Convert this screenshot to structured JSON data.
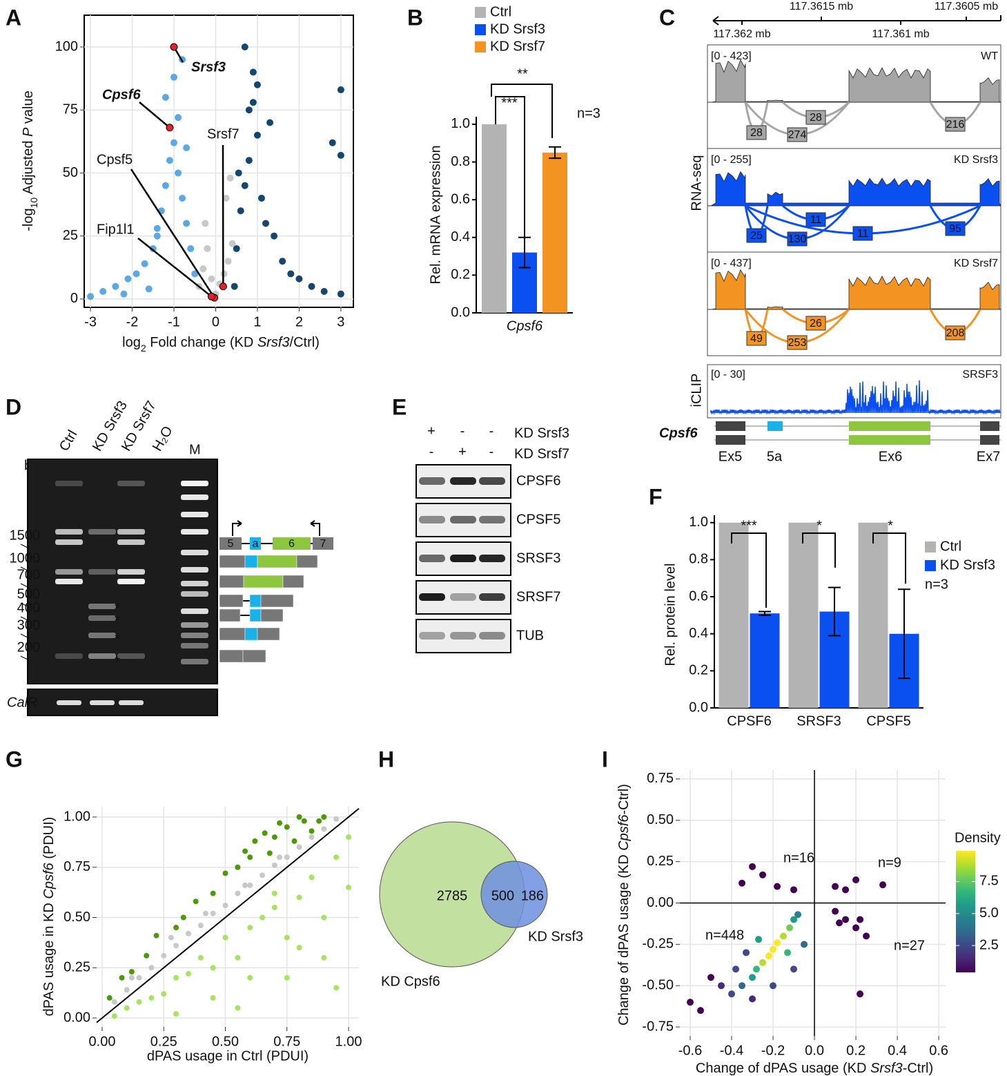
{
  "panel_letters": [
    "A",
    "B",
    "C",
    "D",
    "E",
    "F",
    "G",
    "H",
    "I"
  ],
  "chart_data": [
    {
      "type": "scatter",
      "xlabel": [
        "log",
        "2",
        " Fold change (KD ",
        "Srsf3",
        "/Ctrl)"
      ],
      "ylabel": [
        "-log",
        "10",
        " Adjusted ",
        "P",
        " value"
      ],
      "xlim": [
        -3.15,
        3.3
      ],
      "ylim": [
        -3.3,
        112.6
      ],
      "xticks": [
        -3,
        -2,
        -1,
        0,
        1,
        2,
        3
      ],
      "yticks": [
        0,
        25,
        50,
        75,
        100
      ],
      "grid": true,
      "series": [
        {
          "color": "#5aa9e6",
          "x": [
            -3.0,
            -2.7,
            -2.4,
            -2.1,
            -1.9,
            -1.7,
            -1.5,
            -1.4,
            -1.3,
            -1.2,
            -1.1,
            -1.0,
            -0.9,
            -0.8,
            -0.7,
            -0.6,
            -0.5,
            -1.6,
            -1.2,
            -0.9,
            -0.7,
            -1.0,
            -0.8,
            -1.4,
            -2.2
          ],
          "values": [
            1,
            3,
            5,
            8,
            10,
            14,
            20,
            28,
            35,
            45,
            55,
            62,
            50,
            40,
            30,
            20,
            10,
            4,
            80,
            72,
            60,
            88,
            95,
            25,
            2
          ]
        },
        {
          "color": "#15466f",
          "x": [
            0.45,
            0.5,
            0.6,
            0.7,
            0.8,
            0.9,
            1.0,
            1.1,
            1.2,
            1.4,
            1.6,
            1.8,
            2.0,
            2.3,
            2.6,
            3.0,
            0.8,
            0.9,
            1.0,
            1.3,
            3.0,
            3.0,
            0.55,
            0.7,
            2.8
          ],
          "values": [
            5,
            20,
            35,
            45,
            55,
            78,
            65,
            40,
            30,
            25,
            15,
            10,
            8,
            5,
            3,
            2,
            75,
            90,
            85,
            70,
            83,
            57,
            50,
            100,
            62
          ]
        },
        {
          "color": "#c8c8c8",
          "x": [
            -0.4,
            -0.3,
            -0.2,
            -0.1,
            0,
            0.1,
            0.2,
            0.3,
            0.4,
            -0.25,
            0.25,
            0.35
          ],
          "values": [
            5,
            12,
            20,
            8,
            2,
            6,
            10,
            15,
            22,
            30,
            40,
            48
          ]
        }
      ],
      "highlight_color": "#e8202a",
      "annotations": [
        {
          "text": "Srsf3",
          "x": -1.0,
          "y": 100
        },
        {
          "text": "Cpsf6",
          "x": -1.1,
          "y": 68
        },
        {
          "text": "Srsf7",
          "x": 0.18,
          "y": 5
        },
        {
          "text": "Cpsf5",
          "x": -0.03,
          "y": 0.5
        },
        {
          "text": "Fip1l1",
          "x": -0.1,
          "y": 1
        }
      ]
    },
    {
      "type": "bar",
      "categories": [
        "Cpsf6"
      ],
      "ylabel": "Rel. mRNA expression",
      "ylim": [
        0,
        1.04
      ],
      "yticks": [
        {
          "value": 0,
          "label": "0.0"
        },
        {
          "value": 0.2,
          "label": "0.2"
        },
        {
          "value": 0.4,
          "label": "0.4"
        },
        {
          "value": 0.6,
          "label": "0.6"
        },
        {
          "value": 0.8,
          "label": "0.8"
        },
        {
          "value": 1,
          "label": "1.0"
        }
      ],
      "series": [
        {
          "name": "Ctrl",
          "color": "#b3b3b3",
          "values": [
            1.0
          ]
        },
        {
          "name": "KD Srsf3",
          "color": "#0a4ff0",
          "values": [
            0.32
          ],
          "errors": [
            0.08
          ]
        },
        {
          "name": "KD Srsf7",
          "color": "#f39322",
          "values": [
            0.85
          ],
          "errors": [
            0.03
          ]
        }
      ],
      "significance": [
        "***",
        "**"
      ],
      "note": "n=3"
    },
    {
      "type": "bar",
      "categories": [
        "CPSF6",
        "SRSF3",
        "CPSF5"
      ],
      "ylabel": "Rel. protein level",
      "ylim": [
        0,
        1.04
      ],
      "yticks": [
        {
          "value": 0,
          "label": "0.0"
        },
        {
          "value": 0.2,
          "label": "0.2"
        },
        {
          "value": 0.4,
          "label": "0.4"
        },
        {
          "value": 0.6,
          "label": "0.6"
        },
        {
          "value": 0.8,
          "label": "0.8"
        },
        {
          "value": 1,
          "label": "1.0"
        }
      ],
      "series": [
        {
          "name": "Ctrl",
          "color": "#b3b3b3",
          "values": [
            1.0,
            1.0,
            1.0
          ]
        },
        {
          "name": "KD Srsf3",
          "color": "#0a4ff0",
          "values": [
            0.51,
            0.52,
            0.4
          ],
          "errors": [
            0.01,
            0.13,
            0.24
          ]
        }
      ],
      "significance": [
        "***",
        "*",
        "*"
      ],
      "note": "n=3"
    },
    {
      "type": "scatter",
      "xlabel": "dPAS usage in Ctrl (PDUI)",
      "ylabel": [
        "dPAS usage in KD ",
        "Cpsf6",
        " (PDUI)"
      ],
      "xlim": [
        -0.0224,
        1.042
      ],
      "ylim": [
        -0.0447,
        1.0515
      ],
      "xticks": [
        {
          "value": 0,
          "label": "0.00"
        },
        {
          "value": 0.25,
          "label": "0.25"
        },
        {
          "value": 0.5,
          "label": "0.50"
        },
        {
          "value": 0.75,
          "label": "0.75"
        },
        {
          "value": 1,
          "label": "1.00"
        }
      ],
      "yticks": [
        {
          "value": 0,
          "label": "0.00"
        },
        {
          "value": 0.25,
          "label": "0.25"
        },
        {
          "value": 0.5,
          "label": "0.50"
        },
        {
          "value": 0.75,
          "label": "0.75"
        },
        {
          "value": 1,
          "label": "1.00"
        }
      ],
      "grid": true,
      "diagonal": true,
      "series": [
        {
          "color": "#c8c8c8",
          "x": [
            0.05,
            0.1,
            0.15,
            0.2,
            0.25,
            0.3,
            0.35,
            0.4,
            0.45,
            0.5,
            0.55,
            0.6,
            0.65,
            0.7,
            0.75,
            0.8,
            0.85,
            0.9,
            0.95,
            0.12,
            0.28,
            0.42,
            0.58,
            0.72
          ],
          "values": [
            0.08,
            0.14,
            0.2,
            0.25,
            0.31,
            0.36,
            0.42,
            0.46,
            0.52,
            0.56,
            0.62,
            0.66,
            0.71,
            0.76,
            0.8,
            0.85,
            0.9,
            0.94,
            0.99,
            0.2,
            0.4,
            0.52,
            0.66,
            0.8
          ]
        },
        {
          "color": "#4c9a0a",
          "x": [
            0.03,
            0.08,
            0.12,
            0.18,
            0.22,
            0.3,
            0.33,
            0.38,
            0.45,
            0.5,
            0.55,
            0.6,
            0.62,
            0.68,
            0.7,
            0.75,
            0.78,
            0.82,
            0.85,
            0.9,
            0.72,
            0.66,
            0.58,
            0.8,
            0.88
          ],
          "values": [
            0.1,
            0.2,
            0.23,
            0.31,
            0.41,
            0.45,
            0.5,
            0.58,
            0.62,
            0.72,
            0.75,
            0.8,
            0.88,
            0.82,
            0.9,
            0.95,
            0.88,
            0.98,
            0.93,
            1.0,
            0.97,
            0.92,
            0.83,
            1.0,
            0.98
          ]
        },
        {
          "color": "#a6e363",
          "x": [
            0.05,
            0.1,
            0.15,
            0.2,
            0.25,
            0.3,
            0.35,
            0.4,
            0.45,
            0.5,
            0.55,
            0.6,
            0.65,
            0.7,
            0.75,
            0.8,
            0.85,
            0.9,
            0.95,
            1.0,
            0.3,
            0.45,
            0.6,
            0.75,
            0.9,
            1.0,
            0.55,
            0.8,
            0.95,
            0.7
          ],
          "values": [
            0.01,
            0.05,
            0.08,
            0.1,
            0.12,
            0.2,
            0.22,
            0.3,
            0.25,
            0.4,
            0.3,
            0.45,
            0.5,
            0.55,
            0.4,
            0.6,
            0.7,
            0.5,
            0.8,
            0.9,
            0.02,
            0.1,
            0.2,
            0.2,
            0.3,
            0.65,
            0.05,
            0.35,
            0.15,
            0.62
          ]
        }
      ]
    },
    {
      "type": "venn",
      "sets": [
        "KD Cpsf6",
        "KD Srsf3"
      ],
      "colors": [
        "#c2e0a0",
        "#6f8fe0"
      ],
      "values": [
        2785,
        500,
        186
      ]
    },
    {
      "type": "scatter",
      "xlabel": [
        "Change of dPAS usage (KD ",
        "Srsf3",
        "-Ctrl)"
      ],
      "ylabel": [
        "Change of dPAS usage (KD ",
        "Cpsf6",
        "-Ctrl)"
      ],
      "xlim": [
        -0.65,
        0.633
      ],
      "ylim": [
        -0.804,
        0.804
      ],
      "xticks": [
        {
          "value": -0.6,
          "label": "-0.6"
        },
        {
          "value": -0.4,
          "label": "-0.4"
        },
        {
          "value": -0.2,
          "label": "-0.2"
        },
        {
          "value": 0,
          "label": "0.0"
        },
        {
          "value": 0.2,
          "label": "0.2"
        },
        {
          "value": 0.4,
          "label": "0.4"
        },
        {
          "value": 0.6,
          "label": "0.6"
        }
      ],
      "yticks": [
        {
          "value": -0.75,
          "label": "-0.75"
        },
        {
          "value": -0.5,
          "label": "-0.50"
        },
        {
          "value": -0.25,
          "label": "-0.25"
        },
        {
          "value": 0,
          "label": "0.00"
        },
        {
          "value": 0.25,
          "label": "0.25"
        },
        {
          "value": 0.5,
          "label": "0.50"
        },
        {
          "value": 0.75,
          "label": "0.75"
        }
      ],
      "grid": true,
      "zero_lines": true,
      "colormap": "viridis",
      "series": [
        {
          "x": [
            -0.2,
            -0.22,
            -0.18,
            -0.25,
            -0.15,
            -0.28,
            -0.12,
            -0.3,
            -0.1,
            -0.35,
            -0.08,
            -0.4,
            -0.45,
            -0.55,
            -0.6,
            -0.5,
            -0.33,
            -0.05,
            -0.27,
            -0.13,
            -0.38,
            -0.3,
            -0.2,
            -0.1,
            -0.3,
            -0.25,
            -0.18,
            -0.1,
            -0.35,
            0.1,
            0.15,
            0.2,
            0.33,
            0.1,
            0.15,
            0.2,
            0.25,
            0.12,
            0.22,
            0.22
          ],
          "values": [
            -0.28,
            -0.32,
            -0.24,
            -0.36,
            -0.2,
            -0.4,
            -0.15,
            -0.45,
            -0.1,
            -0.5,
            -0.07,
            -0.55,
            -0.5,
            -0.65,
            -0.6,
            -0.45,
            -0.3,
            -0.25,
            -0.22,
            -0.3,
            -0.4,
            -0.58,
            -0.5,
            -0.4,
            0.22,
            0.17,
            0.1,
            0.08,
            0.12,
            0.1,
            0.08,
            0.14,
            0.11,
            -0.05,
            -0.1,
            -0.15,
            -0.2,
            -0.12,
            -0.1,
            -0.55
          ],
          "density": [
            9.8,
            9.5,
            9.6,
            8.5,
            8.8,
            7,
            7.5,
            5.5,
            6,
            3.5,
            4.5,
            2,
            1.2,
            0.5,
            0.4,
            0.8,
            3,
            3.5,
            6,
            6.5,
            2.5,
            1.5,
            3,
            2.2,
            0.4,
            0.4,
            0.4,
            0.4,
            0.4,
            0.4,
            0.4,
            0.4,
            0.4,
            0.4,
            0.4,
            0.4,
            0.4,
            0.4,
            0.4,
            0.4
          ]
        }
      ],
      "annotations": [
        "n=16",
        "n=9",
        "n=448",
        "n=27"
      ],
      "colorbar": {
        "title": "Density",
        "lim": [
          0.4,
          9.9
        ],
        "ticks": [
          {
            "value": 2.5,
            "label": "2.5"
          },
          {
            "value": 5,
            "label": "5.0"
          },
          {
            "value": 7.5,
            "label": "7.5"
          }
        ]
      }
    }
  ],
  "genome": {
    "coords_top": [
      "117.3615 mb",
      "117.3605 mb"
    ],
    "coords_bottom": [
      "117.362 mb",
      "117.361 mb"
    ],
    "assay_labels": [
      "RNA-seq",
      "iCLIP"
    ],
    "tracks": [
      {
        "range": "[0 - 423]",
        "name": "WT",
        "color": "#a6a6a6",
        "junctions": [
          28,
          274,
          28,
          216
        ]
      },
      {
        "range": "[0 - 255]",
        "name": "KD Srsf3",
        "color": "#0a4ff0",
        "junctions": [
          25,
          130,
          11,
          11,
          95
        ]
      },
      {
        "range": "[0 - 437]",
        "name": "KD Srsf7",
        "color": "#f39322",
        "junctions": [
          49,
          253,
          26,
          208
        ]
      }
    ],
    "iclip": {
      "range": "[0 - 30]",
      "name": "SRSF3"
    },
    "gene": "Cpsf6",
    "exons": [
      "Ex5",
      "5a",
      "Ex6",
      "Ex7"
    ]
  },
  "gel": {
    "lanes": [
      "Ctrl",
      "KD Srsf3",
      "KD Srsf7",
      "H₂O",
      "M"
    ],
    "unit": "bp",
    "sizes": [
      1500,
      1000,
      700,
      500,
      400,
      300,
      200
    ],
    "loading": "CalR",
    "exons": [
      "5",
      "a",
      "6",
      "7"
    ],
    "markers": [
      "*",
      "*",
      "*",
      "*"
    ]
  },
  "western": {
    "conditions": [
      [
        "+",
        "-",
        "-"
      ],
      [
        "-",
        "+",
        "-"
      ]
    ],
    "condition_labels": [
      "KD Srsf3",
      "KD Srsf7"
    ],
    "proteins": [
      "CPSF6",
      "CPSF5",
      "SRSF3",
      "SRSF7",
      "TUB"
    ]
  }
}
